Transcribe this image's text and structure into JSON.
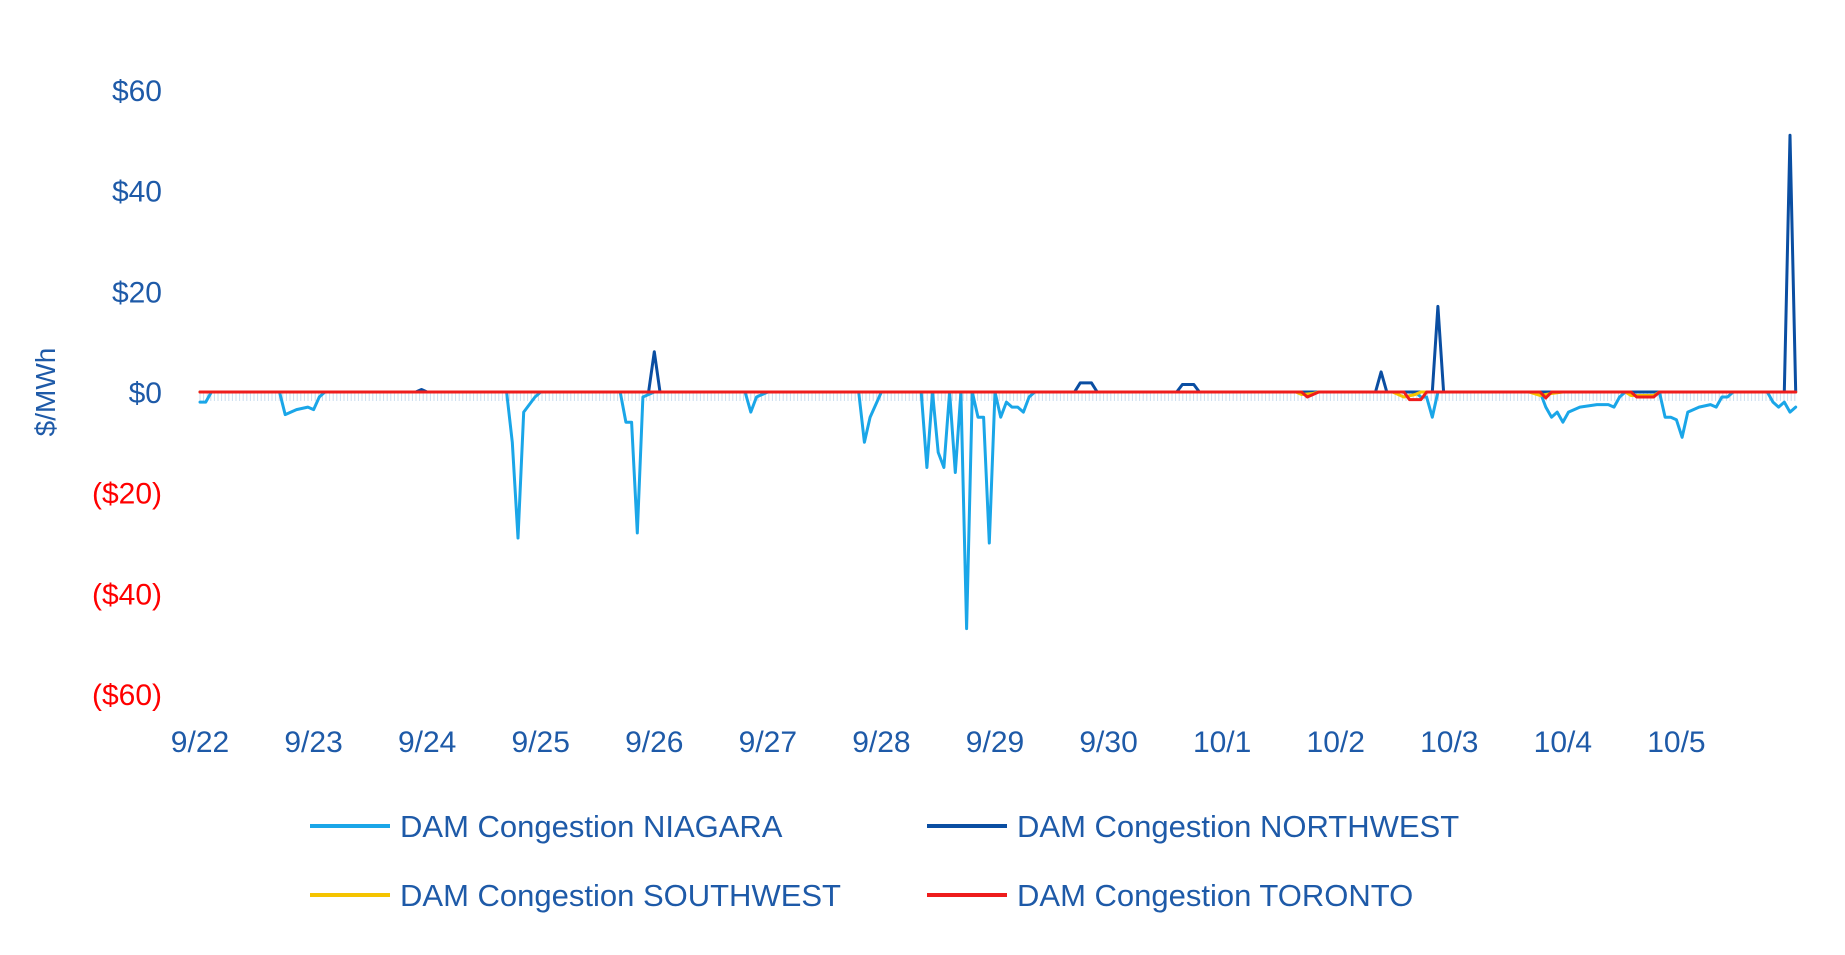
{
  "chart_data": {
    "type": "line",
    "ylabel": "$/MWh",
    "ylim": [
      -60,
      60
    ],
    "y_ticks": [
      {
        "value": 60,
        "label": "$60",
        "color": "#1e5aa8"
      },
      {
        "value": 40,
        "label": "$40",
        "color": "#1e5aa8"
      },
      {
        "value": 20,
        "label": "$20",
        "color": "#1e5aa8"
      },
      {
        "value": 0,
        "label": "$0",
        "color": "#1e5aa8"
      },
      {
        "value": -20,
        "label": "($20)",
        "color": "#ff0000"
      },
      {
        "value": -40,
        "label": "($40)",
        "color": "#ff0000"
      },
      {
        "value": -60,
        "label": "($60)",
        "color": "#ff0000"
      }
    ],
    "x_ticks": [
      "9/22",
      "9/23",
      "9/24",
      "9/25",
      "9/26",
      "9/27",
      "9/28",
      "9/29",
      "9/30",
      "10/1",
      "10/2",
      "10/3",
      "10/4",
      "10/5"
    ],
    "x_range": [
      0,
      14
    ],
    "grid": false,
    "legend_position": "bottom",
    "series": [
      {
        "name": "DAM Congestion NIAGARA",
        "color": "#1aa6e8",
        "points": [
          [
            0,
            -2
          ],
          [
            0.05,
            -2
          ],
          [
            0.1,
            0
          ],
          [
            0.7,
            0
          ],
          [
            0.75,
            -4.5
          ],
          [
            0.85,
            -3.5
          ],
          [
            0.95,
            -3
          ],
          [
            1.0,
            -3.5
          ],
          [
            1.05,
            -1
          ],
          [
            1.1,
            0
          ],
          [
            2.7,
            0
          ],
          [
            2.75,
            -10
          ],
          [
            2.8,
            -29
          ],
          [
            2.85,
            -4
          ],
          [
            2.95,
            -1
          ],
          [
            3.0,
            0
          ],
          [
            3.7,
            0
          ],
          [
            3.75,
            -6
          ],
          [
            3.8,
            -6
          ],
          [
            3.85,
            -28
          ],
          [
            3.9,
            -1
          ],
          [
            4.0,
            0
          ],
          [
            4.8,
            0
          ],
          [
            4.85,
            -4
          ],
          [
            4.9,
            -1
          ],
          [
            5.0,
            0
          ],
          [
            5.8,
            0
          ],
          [
            5.85,
            -10
          ],
          [
            5.9,
            -5
          ],
          [
            6.0,
            0
          ],
          [
            6.35,
            0
          ],
          [
            6.4,
            -15
          ],
          [
            6.45,
            0
          ],
          [
            6.5,
            -12
          ],
          [
            6.55,
            -15
          ],
          [
            6.6,
            0
          ],
          [
            6.65,
            -16
          ],
          [
            6.7,
            0
          ],
          [
            6.75,
            -47
          ],
          [
            6.8,
            0
          ],
          [
            6.85,
            -5
          ],
          [
            6.9,
            -5
          ],
          [
            6.95,
            -30
          ],
          [
            7.0,
            0
          ],
          [
            7.05,
            -5
          ],
          [
            7.1,
            -2
          ],
          [
            7.15,
            -3
          ],
          [
            7.2,
            -3
          ],
          [
            7.25,
            -4
          ],
          [
            7.3,
            -1
          ],
          [
            7.35,
            0
          ],
          [
            10.7,
            0
          ],
          [
            10.75,
            -1
          ],
          [
            10.8,
            -1
          ],
          [
            10.85,
            -5
          ],
          [
            10.9,
            0
          ],
          [
            11.8,
            0
          ],
          [
            11.85,
            -3
          ],
          [
            11.9,
            -5
          ],
          [
            11.95,
            -4
          ],
          [
            12.0,
            -6
          ],
          [
            12.05,
            -4
          ],
          [
            12.15,
            -3
          ],
          [
            12.3,
            -2.5
          ],
          [
            12.4,
            -2.5
          ],
          [
            12.45,
            -3
          ],
          [
            12.5,
            -1
          ],
          [
            12.55,
            0
          ],
          [
            12.85,
            0
          ],
          [
            12.9,
            -5
          ],
          [
            12.95,
            -5
          ],
          [
            13.0,
            -5.5
          ],
          [
            13.05,
            -9
          ],
          [
            13.1,
            -4
          ],
          [
            13.2,
            -3
          ],
          [
            13.3,
            -2.5
          ],
          [
            13.35,
            -3
          ],
          [
            13.4,
            -1
          ],
          [
            13.45,
            -1
          ],
          [
            13.5,
            0
          ],
          [
            13.8,
            0
          ],
          [
            13.85,
            -2
          ],
          [
            13.9,
            -3
          ],
          [
            13.95,
            -2
          ],
          [
            14.0,
            -4
          ],
          [
            14.05,
            -3
          ]
        ]
      },
      {
        "name": "DAM Congestion NORTHWEST",
        "color": "#0a4ea2",
        "points": [
          [
            0,
            0
          ],
          [
            1.9,
            0
          ],
          [
            1.95,
            0.5
          ],
          [
            2.0,
            0
          ],
          [
            3.95,
            0
          ],
          [
            4.0,
            8
          ],
          [
            4.05,
            0
          ],
          [
            7.7,
            0
          ],
          [
            7.75,
            1.8
          ],
          [
            7.85,
            1.8
          ],
          [
            7.9,
            0
          ],
          [
            8.6,
            0
          ],
          [
            8.65,
            1.5
          ],
          [
            8.75,
            1.5
          ],
          [
            8.8,
            0
          ],
          [
            10.35,
            0
          ],
          [
            10.4,
            4
          ],
          [
            10.45,
            0
          ],
          [
            10.85,
            0
          ],
          [
            10.9,
            17
          ],
          [
            10.95,
            0
          ],
          [
            13.95,
            0
          ],
          [
            14.0,
            51
          ],
          [
            14.05,
            0
          ]
        ]
      },
      {
        "name": "DAM Congestion SOUTHWEST",
        "color": "#f5c400",
        "points": [
          [
            0,
            0
          ],
          [
            9.65,
            0
          ],
          [
            9.7,
            -0.5
          ],
          [
            9.8,
            -0.3
          ],
          [
            9.85,
            0
          ],
          [
            10.5,
            0
          ],
          [
            10.6,
            -1
          ],
          [
            10.7,
            -0.5
          ],
          [
            10.75,
            0
          ],
          [
            11.7,
            0
          ],
          [
            11.8,
            -0.7
          ],
          [
            11.9,
            -0.3
          ],
          [
            12.0,
            0
          ],
          [
            12.55,
            0
          ],
          [
            12.6,
            -0.7
          ],
          [
            12.8,
            -0.7
          ],
          [
            12.85,
            0
          ],
          [
            14.05,
            0
          ]
        ]
      },
      {
        "name": "DAM Congestion TORONTO",
        "color": "#ee1c1c",
        "points": [
          [
            0,
            0
          ],
          [
            9.7,
            0
          ],
          [
            9.75,
            -1
          ],
          [
            9.8,
            -0.5
          ],
          [
            9.85,
            0
          ],
          [
            10.6,
            0
          ],
          [
            10.65,
            -1.5
          ],
          [
            10.75,
            -1.5
          ],
          [
            10.8,
            0
          ],
          [
            11.8,
            0
          ],
          [
            11.85,
            -1.2
          ],
          [
            11.9,
            0
          ],
          [
            12.6,
            0
          ],
          [
            12.65,
            -1
          ],
          [
            12.8,
            -1
          ],
          [
            12.85,
            0
          ],
          [
            14.05,
            0
          ]
        ]
      }
    ]
  }
}
